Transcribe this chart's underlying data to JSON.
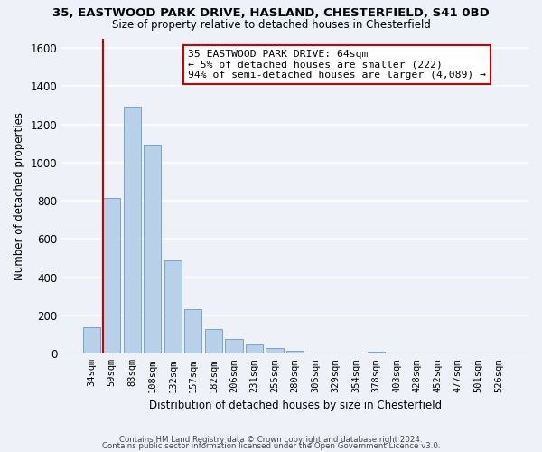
{
  "title": "35, EASTWOOD PARK DRIVE, HASLAND, CHESTERFIELD, S41 0BD",
  "subtitle": "Size of property relative to detached houses in Chesterfield",
  "xlabel": "Distribution of detached houses by size in Chesterfield",
  "ylabel": "Number of detached properties",
  "bar_values": [
    140,
    815,
    1295,
    1095,
    490,
    235,
    130,
    75,
    50,
    30,
    15,
    0,
    0,
    0,
    10,
    0,
    0,
    0,
    0,
    0,
    0
  ],
  "bar_labels": [
    "34sqm",
    "59sqm",
    "83sqm",
    "108sqm",
    "132sqm",
    "157sqm",
    "182sqm",
    "206sqm",
    "231sqm",
    "255sqm",
    "280sqm",
    "305sqm",
    "329sqm",
    "354sqm",
    "378sqm",
    "403sqm",
    "428sqm",
    "452sqm",
    "477sqm",
    "501sqm",
    "526sqm"
  ],
  "bar_color": "#b8d0e8",
  "bar_edge_color": "#6699cc",
  "highlight_bar_index": 1,
  "highlight_color": "#cc0000",
  "annotation_text": "35 EASTWOOD PARK DRIVE: 64sqm\n← 5% of detached houses are smaller (222)\n94% of semi-detached houses are larger (4,089) →",
  "annotation_box_color": "#ffffff",
  "annotation_box_edge": "#cc0000",
  "ylim": [
    0,
    1650
  ],
  "yticks": [
    0,
    200,
    400,
    600,
    800,
    1000,
    1200,
    1400,
    1600
  ],
  "footer1": "Contains HM Land Registry data © Crown copyright and database right 2024.",
  "footer2": "Contains public sector information licensed under the Open Government Licence v3.0.",
  "bg_color": "#eef2f8",
  "grid_color": "#ffffff"
}
